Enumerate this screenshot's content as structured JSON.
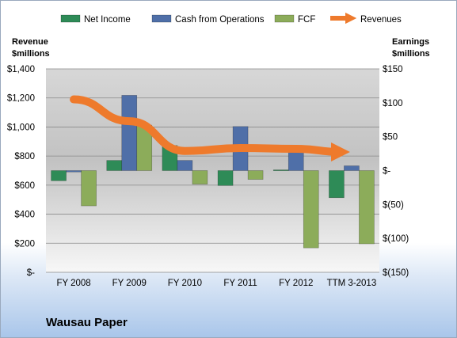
{
  "company_name": "Wausau Paper",
  "chart_data": {
    "type": "bar",
    "title": "",
    "categories": [
      "FY 2008",
      "FY 2009",
      "FY 2010",
      "FY 2011",
      "FY 2012",
      "TTM 3-2013"
    ],
    "left_axis": {
      "title_lines": [
        "Revenue",
        "$millions"
      ],
      "ylim": [
        0,
        1400
      ],
      "ticks": [
        0,
        200,
        400,
        600,
        800,
        1000,
        1200,
        1400
      ],
      "tick_labels": [
        "$-",
        "$200",
        "$400",
        "$600",
        "$800",
        "$1,000",
        "$1,200",
        "$1,400"
      ]
    },
    "right_axis": {
      "title_lines": [
        "Earnings",
        "$millions"
      ],
      "ylim": [
        -150,
        150
      ],
      "ticks": [
        150,
        100,
        50,
        0,
        -50,
        -100,
        -150
      ],
      "tick_labels": [
        "$150",
        "$100",
        "$50",
        "$-",
        "$(50)",
        "$(100)",
        "$(150)"
      ]
    },
    "series": [
      {
        "name": "Net Income",
        "type": "bar",
        "axis": "right",
        "color": "#2e8b57",
        "values": [
          -15,
          15,
          37,
          -22,
          1,
          -40
        ]
      },
      {
        "name": "Cash from Operations",
        "type": "bar",
        "axis": "right",
        "color": "#4f6fa8",
        "values": [
          -2,
          111,
          15,
          65,
          34,
          7
        ]
      },
      {
        "name": "FCF",
        "type": "bar",
        "axis": "right",
        "color": "#8cac5a",
        "values": [
          -52,
          67,
          -20,
          -13,
          -114,
          -108
        ]
      },
      {
        "name": "Revenues",
        "type": "line",
        "axis": "left",
        "color": "#ee7a2c",
        "values": [
          1190,
          1040,
          835,
          855,
          850,
          828
        ]
      }
    ],
    "legend_position": "top",
    "grid": true
  }
}
